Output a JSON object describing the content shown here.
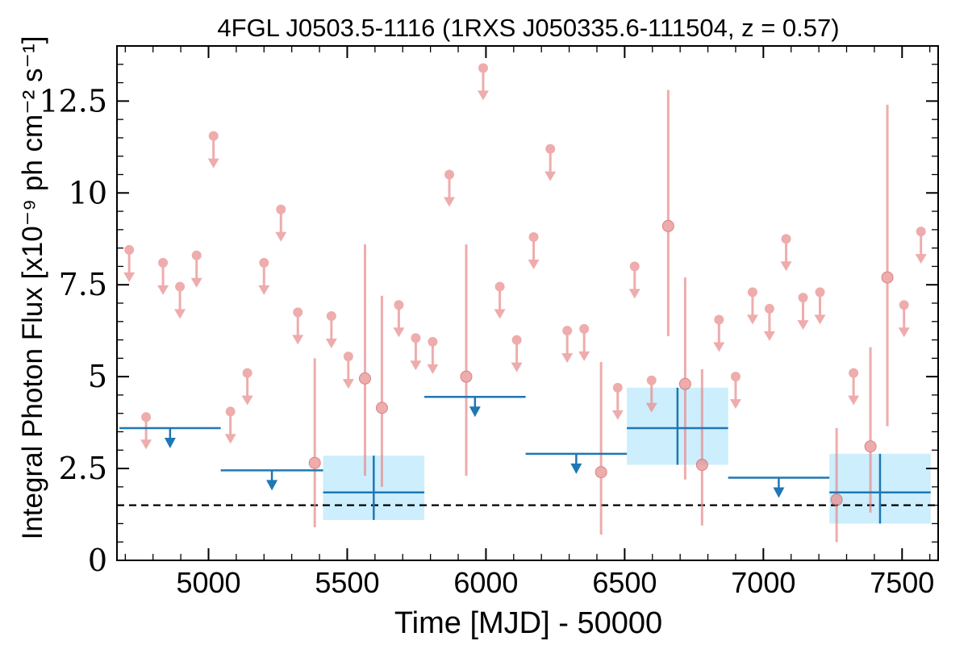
{
  "chart_data": {
    "type": "scatter",
    "title": "4FGL J0503.5-1116 (1RXS J050335.6-111504, z = 0.57)",
    "xlabel": "Time [MJD] - 50000",
    "ylabel": "Integral Photon Flux [x10⁻⁹ ph cm⁻² s⁻¹]",
    "xlim": [
      4670,
      7630
    ],
    "ylim": [
      0,
      14
    ],
    "x_ticks": [
      5000,
      5500,
      6000,
      6500,
      7000,
      7500
    ],
    "x_tick_labels": [
      "5000",
      "5500",
      "6000",
      "6500",
      "7000",
      "7500"
    ],
    "y_ticks": [
      0,
      2.5,
      5,
      7.5,
      10,
      12.5
    ],
    "y_tick_labels": [
      "0",
      "2.5",
      "5",
      "7.5",
      "10",
      "12.5"
    ],
    "reference_level": 1.5,
    "colors": {
      "short_bins": "#e88a8a",
      "long_bins": "#1f77b4",
      "long_band": "#cdeefc",
      "reference": "#000000"
    },
    "series": [
      {
        "upper_limits": [
          {
            "x": 4714,
            "y": 8.45
          },
          {
            "x": 4775,
            "y": 3.9
          },
          {
            "x": 4836,
            "y": 8.1
          },
          {
            "x": 4897,
            "y": 7.45
          },
          {
            "x": 4957,
            "y": 8.3
          },
          {
            "x": 5018,
            "y": 11.55
          },
          {
            "x": 5079,
            "y": 4.05
          },
          {
            "x": 5140,
            "y": 5.1
          },
          {
            "x": 5200,
            "y": 8.1
          },
          {
            "x": 5261,
            "y": 9.55
          },
          {
            "x": 5322,
            "y": 6.75
          },
          {
            "x": 5443,
            "y": 6.65
          },
          {
            "x": 5504,
            "y": 5.55
          },
          {
            "x": 5686,
            "y": 6.95
          },
          {
            "x": 5747,
            "y": 6.05
          },
          {
            "x": 5808,
            "y": 5.95
          },
          {
            "x": 5868,
            "y": 10.5
          },
          {
            "x": 5990,
            "y": 13.4
          },
          {
            "x": 6050,
            "y": 7.45
          },
          {
            "x": 6111,
            "y": 6.0
          },
          {
            "x": 6172,
            "y": 8.8
          },
          {
            "x": 6232,
            "y": 11.2
          },
          {
            "x": 6293,
            "y": 6.25
          },
          {
            "x": 6354,
            "y": 6.3
          },
          {
            "x": 6475,
            "y": 4.7
          },
          {
            "x": 6536,
            "y": 8.0
          },
          {
            "x": 6597,
            "y": 4.9
          },
          {
            "x": 6840,
            "y": 6.55
          },
          {
            "x": 6900,
            "y": 5.0
          },
          {
            "x": 6961,
            "y": 7.3
          },
          {
            "x": 7022,
            "y": 6.85
          },
          {
            "x": 7082,
            "y": 8.75
          },
          {
            "x": 7143,
            "y": 7.15
          },
          {
            "x": 7204,
            "y": 7.3
          },
          {
            "x": 7325,
            "y": 5.1
          },
          {
            "x": 7507,
            "y": 6.95
          },
          {
            "x": 7568,
            "y": 8.95
          }
        ],
        "detections": [
          {
            "x": 5383,
            "y": 2.65,
            "ylo": 0.9,
            "yhi": 5.5
          },
          {
            "x": 5564,
            "y": 4.95,
            "ylo": 2.3,
            "yhi": 8.6
          },
          {
            "x": 5625,
            "y": 4.15,
            "ylo": 2.0,
            "yhi": 7.2
          },
          {
            "x": 5929,
            "y": 5.0,
            "ylo": 2.3,
            "yhi": 8.6
          },
          {
            "x": 6415,
            "y": 2.4,
            "ylo": 0.7,
            "yhi": 5.4
          },
          {
            "x": 6657,
            "y": 9.1,
            "ylo": 6.1,
            "yhi": 12.8
          },
          {
            "x": 6718,
            "y": 4.8,
            "ylo": 2.2,
            "yhi": 7.7
          },
          {
            "x": 6779,
            "y": 2.6,
            "ylo": 0.95,
            "yhi": 5.2
          },
          {
            "x": 7264,
            "y": 1.65,
            "ylo": 0.5,
            "yhi": 3.6
          },
          {
            "x": 7386,
            "y": 3.1,
            "ylo": 1.3,
            "yhi": 5.8
          },
          {
            "x": 7447,
            "y": 7.7,
            "ylo": 3.65,
            "yhi": 12.4
          }
        ]
      },
      {
        "upper_limits": [
          {
            "x0": 4679,
            "x1": 5044,
            "y": 3.6
          },
          {
            "x0": 5044,
            "x1": 5413,
            "y": 2.45
          },
          {
            "x0": 5778,
            "x1": 6143,
            "y": 4.45
          },
          {
            "x0": 6143,
            "x1": 6508,
            "y": 2.9
          },
          {
            "x0": 6873,
            "x1": 7238,
            "y": 2.25
          }
        ],
        "detections": [
          {
            "x0": 5413,
            "x1": 5778,
            "y": 1.85,
            "ylo": 1.1,
            "yhi": 2.85
          },
          {
            "x0": 6508,
            "x1": 6873,
            "y": 3.6,
            "ylo": 2.6,
            "yhi": 4.7
          },
          {
            "x0": 7238,
            "x1": 7603,
            "y": 1.85,
            "ylo": 1.0,
            "yhi": 2.9
          }
        ]
      }
    ]
  }
}
